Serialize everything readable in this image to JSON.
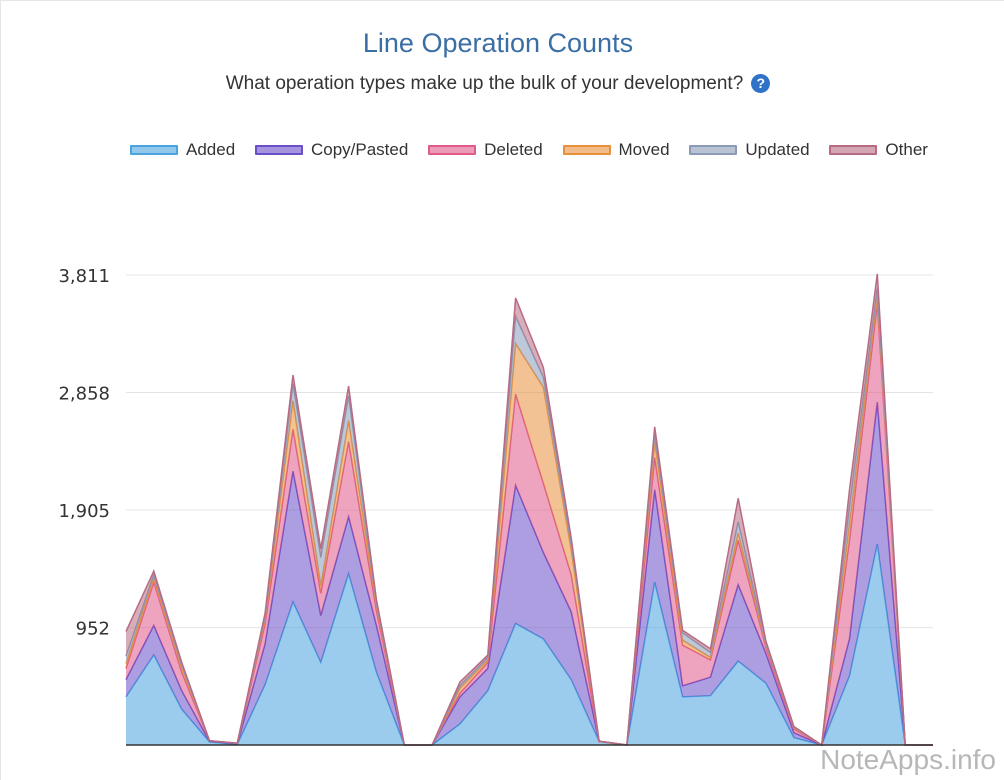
{
  "title": "Line Operation Counts",
  "subtitle": "What operation types make up the bulk of your development?",
  "help_icon": "question-circle-icon",
  "watermark": "NoteApps.info",
  "chart_data": {
    "type": "area",
    "stacked": true,
    "grid": true,
    "legend_position": "top",
    "y_ticks": [
      "952",
      "1,905",
      "2,858",
      "3,811"
    ],
    "y_tick_values": [
      952,
      1905,
      2858,
      3811
    ],
    "ylim": [
      0,
      3811
    ],
    "x_count": 30,
    "series": [
      {
        "name": "Added",
        "color": "#4aa3df",
        "values": [
          390,
          730,
          290,
          25,
          5,
          490,
          1160,
          670,
          1390,
          590,
          0,
          0,
          170,
          440,
          985,
          860,
          530,
          30,
          0,
          1320,
          390,
          400,
          680,
          500,
          60,
          0,
          560,
          1630,
          0,
          0
        ]
      },
      {
        "name": "Copy/Pasted",
        "color": "#6a4fc8",
        "values": [
          140,
          240,
          150,
          5,
          5,
          330,
          1060,
          380,
          460,
          380,
          0,
          0,
          220,
          180,
          1120,
          700,
          550,
          0,
          0,
          750,
          90,
          150,
          620,
          240,
          40,
          0,
          300,
          1150,
          0,
          0
        ]
      },
      {
        "name": "Deleted",
        "color": "#e05a8a",
        "values": [
          90,
          350,
          150,
          5,
          5,
          160,
          340,
          180,
          610,
          120,
          0,
          0,
          30,
          50,
          740,
          560,
          300,
          0,
          0,
          260,
          330,
          140,
          360,
          50,
          30,
          0,
          800,
          800,
          0,
          0
        ]
      },
      {
        "name": "Moved",
        "color": "#e8903c",
        "values": [
          40,
          40,
          40,
          0,
          0,
          40,
          230,
          60,
          170,
          40,
          0,
          0,
          40,
          20,
          410,
          780,
          200,
          0,
          0,
          130,
          40,
          20,
          60,
          20,
          10,
          0,
          130,
          60,
          0,
          0
        ]
      },
      {
        "name": "Updated",
        "color": "#8a9bb8",
        "values": [
          60,
          20,
          20,
          0,
          0,
          20,
          140,
          230,
          200,
          20,
          0,
          0,
          20,
          20,
          220,
          80,
          60,
          0,
          0,
          60,
          60,
          40,
          90,
          10,
          5,
          0,
          140,
          60,
          0,
          0
        ]
      },
      {
        "name": "Other",
        "color": "#b86b82",
        "values": [
          200,
          30,
          20,
          0,
          0,
          30,
          70,
          70,
          80,
          30,
          0,
          0,
          30,
          20,
          150,
          80,
          40,
          0,
          0,
          60,
          20,
          30,
          190,
          20,
          5,
          0,
          140,
          120,
          0,
          0
        ]
      }
    ]
  }
}
